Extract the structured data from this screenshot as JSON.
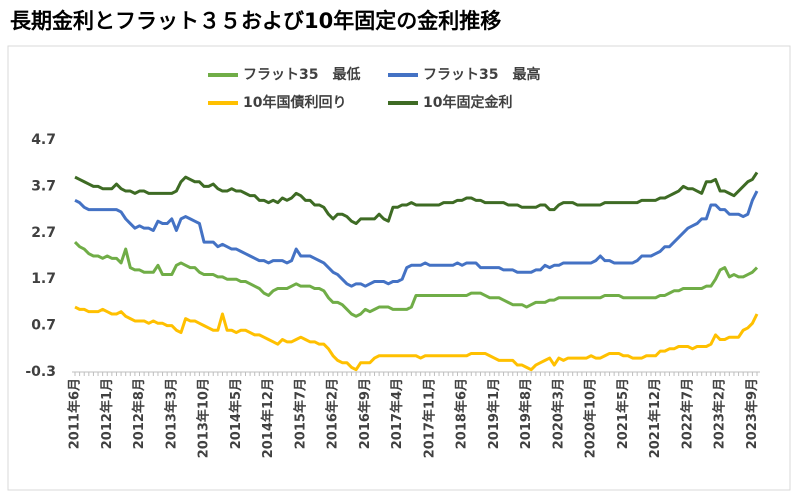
{
  "chart_data": {
    "type": "line",
    "title": "長期金利とフラット３５および10年固定の金利推移",
    "categories": [
      "2011年6月",
      null,
      null,
      null,
      null,
      null,
      null,
      "2012年1月",
      null,
      null,
      null,
      null,
      null,
      null,
      "2012年8月",
      null,
      null,
      null,
      null,
      null,
      null,
      "2013年3月",
      null,
      null,
      null,
      null,
      null,
      null,
      "2013年10月",
      null,
      null,
      null,
      null,
      null,
      null,
      "2014年5月",
      null,
      null,
      null,
      null,
      null,
      null,
      "2014年12月",
      null,
      null,
      null,
      null,
      null,
      null,
      "2015年7月",
      null,
      null,
      null,
      null,
      null,
      null,
      "2016年2月",
      null,
      null,
      null,
      null,
      null,
      null,
      "2016年9月",
      null,
      null,
      null,
      null,
      null,
      null,
      "2017年4月",
      null,
      null,
      null,
      null,
      null,
      null,
      "2017年11月",
      null,
      null,
      null,
      null,
      null,
      null,
      "2018年6月",
      null,
      null,
      null,
      null,
      null,
      null,
      "2019年1月",
      null,
      null,
      null,
      null,
      null,
      null,
      "2019年8月",
      null,
      null,
      null,
      null,
      null,
      null,
      "2020年3月",
      null,
      null,
      null,
      null,
      null,
      null,
      "2020年10月",
      null,
      null,
      null,
      null,
      null,
      null,
      "2021年5月",
      null,
      null,
      null,
      null,
      null,
      null,
      "2021年12月",
      null,
      null,
      null,
      null,
      null,
      null,
      "2022年7月",
      null,
      null,
      null,
      null,
      null,
      null,
      "2023年2月",
      null,
      null,
      null,
      null,
      null,
      null,
      "2023年9月",
      null
    ],
    "series": [
      {
        "name": "フラット35　最低",
        "color": "#70ad47",
        "values": [
          2.5,
          2.4,
          2.35,
          2.25,
          2.2,
          2.2,
          2.15,
          2.2,
          2.15,
          2.15,
          2.05,
          2.35,
          1.95,
          1.9,
          1.9,
          1.85,
          1.85,
          1.85,
          2.0,
          1.8,
          1.8,
          1.8,
          2.0,
          2.05,
          2.0,
          1.95,
          1.95,
          1.85,
          1.8,
          1.8,
          1.8,
          1.75,
          1.75,
          1.7,
          1.7,
          1.7,
          1.65,
          1.65,
          1.6,
          1.55,
          1.5,
          1.4,
          1.35,
          1.45,
          1.5,
          1.5,
          1.5,
          1.55,
          1.6,
          1.55,
          1.55,
          1.55,
          1.5,
          1.5,
          1.45,
          1.3,
          1.2,
          1.2,
          1.15,
          1.05,
          0.95,
          0.9,
          0.95,
          1.05,
          1.0,
          1.05,
          1.1,
          1.1,
          1.1,
          1.05,
          1.05,
          1.05,
          1.05,
          1.1,
          1.35,
          1.35,
          1.35,
          1.35,
          1.35,
          1.35,
          1.35,
          1.35,
          1.35,
          1.35,
          1.35,
          1.35,
          1.4,
          1.4,
          1.4,
          1.35,
          1.3,
          1.3,
          1.3,
          1.25,
          1.2,
          1.15,
          1.15,
          1.15,
          1.1,
          1.15,
          1.2,
          1.2,
          1.2,
          1.25,
          1.25,
          1.3,
          1.3,
          1.3,
          1.3,
          1.3,
          1.3,
          1.3,
          1.3,
          1.3,
          1.3,
          1.35,
          1.35,
          1.35,
          1.35,
          1.3,
          1.3,
          1.3,
          1.3,
          1.3,
          1.3,
          1.3,
          1.3,
          1.35,
          1.35,
          1.4,
          1.45,
          1.45,
          1.5,
          1.5,
          1.5,
          1.5,
          1.5,
          1.55,
          1.55,
          1.7,
          1.9,
          1.95,
          1.75,
          1.8,
          1.75,
          1.75,
          1.8,
          1.85,
          1.95
        ]
      },
      {
        "name": "フラット35　最高",
        "color": "#4472c4",
        "values": [
          3.4,
          3.35,
          3.25,
          3.2,
          3.2,
          3.2,
          3.2,
          3.2,
          3.2,
          3.2,
          3.15,
          3.0,
          2.9,
          2.8,
          2.85,
          2.8,
          2.8,
          2.75,
          2.95,
          2.9,
          2.9,
          3.0,
          2.75,
          3.0,
          3.05,
          3.0,
          2.95,
          2.9,
          2.5,
          2.5,
          2.5,
          2.4,
          2.45,
          2.4,
          2.35,
          2.35,
          2.3,
          2.25,
          2.2,
          2.15,
          2.1,
          2.1,
          2.05,
          2.1,
          2.1,
          2.1,
          2.05,
          2.1,
          2.35,
          2.2,
          2.2,
          2.2,
          2.15,
          2.1,
          2.05,
          1.95,
          1.85,
          1.8,
          1.7,
          1.6,
          1.55,
          1.6,
          1.6,
          1.55,
          1.6,
          1.65,
          1.65,
          1.65,
          1.6,
          1.65,
          1.65,
          1.7,
          1.95,
          2.0,
          2.0,
          2.0,
          2.05,
          2.0,
          2.0,
          2.0,
          2.0,
          2.0,
          2.0,
          2.05,
          2.0,
          2.05,
          2.05,
          2.05,
          1.95,
          1.95,
          1.95,
          1.95,
          1.95,
          1.9,
          1.9,
          1.9,
          1.85,
          1.85,
          1.85,
          1.85,
          1.9,
          1.9,
          2.0,
          1.95,
          2.0,
          2.0,
          2.05,
          2.05,
          2.05,
          2.05,
          2.05,
          2.05,
          2.05,
          2.1,
          2.2,
          2.1,
          2.1,
          2.05,
          2.05,
          2.05,
          2.05,
          2.05,
          2.1,
          2.2,
          2.2,
          2.2,
          2.25,
          2.3,
          2.4,
          2.4,
          2.5,
          2.6,
          2.7,
          2.8,
          2.85,
          2.9,
          3.0,
          3.0,
          3.3,
          3.3,
          3.2,
          3.2,
          3.1,
          3.1,
          3.1,
          3.05,
          3.1,
          3.4,
          3.6
        ]
      },
      {
        "name": "10年国債利回り",
        "color": "#ffc000",
        "values": [
          1.1,
          1.05,
          1.05,
          1.0,
          1.0,
          1.0,
          1.05,
          1.0,
          0.95,
          0.95,
          1.0,
          0.9,
          0.85,
          0.8,
          0.8,
          0.8,
          0.75,
          0.8,
          0.75,
          0.75,
          0.7,
          0.7,
          0.6,
          0.55,
          0.85,
          0.8,
          0.8,
          0.75,
          0.7,
          0.65,
          0.6,
          0.6,
          0.95,
          0.6,
          0.6,
          0.55,
          0.6,
          0.6,
          0.55,
          0.5,
          0.5,
          0.45,
          0.4,
          0.35,
          0.3,
          0.4,
          0.35,
          0.35,
          0.4,
          0.45,
          0.4,
          0.35,
          0.35,
          0.3,
          0.3,
          0.2,
          0.05,
          -0.05,
          -0.1,
          -0.1,
          -0.2,
          -0.25,
          -0.1,
          -0.1,
          -0.1,
          0.0,
          0.05,
          0.05,
          0.05,
          0.05,
          0.05,
          0.05,
          0.05,
          0.05,
          0.05,
          0.0,
          0.05,
          0.05,
          0.05,
          0.05,
          0.05,
          0.05,
          0.05,
          0.05,
          0.05,
          0.05,
          0.1,
          0.1,
          0.1,
          0.1,
          0.05,
          0.0,
          -0.05,
          -0.05,
          -0.05,
          -0.05,
          -0.15,
          -0.15,
          -0.2,
          -0.25,
          -0.15,
          -0.1,
          -0.05,
          0.0,
          -0.15,
          0.0,
          -0.05,
          0.0,
          0.0,
          0.0,
          0.0,
          0.0,
          0.05,
          0.0,
          0.0,
          0.05,
          0.1,
          0.1,
          0.1,
          0.05,
          0.05,
          0.0,
          0.0,
          0.0,
          0.05,
          0.05,
          0.05,
          0.15,
          0.15,
          0.2,
          0.2,
          0.25,
          0.25,
          0.25,
          0.2,
          0.25,
          0.25,
          0.25,
          0.3,
          0.5,
          0.4,
          0.4,
          0.45,
          0.45,
          0.45,
          0.6,
          0.65,
          0.75,
          0.95
        ]
      },
      {
        "name": "10年固定金利",
        "color": "#3e6b24",
        "values": [
          3.9,
          3.85,
          3.8,
          3.75,
          3.7,
          3.7,
          3.65,
          3.65,
          3.65,
          3.75,
          3.65,
          3.6,
          3.6,
          3.55,
          3.6,
          3.6,
          3.55,
          3.55,
          3.55,
          3.55,
          3.55,
          3.55,
          3.6,
          3.8,
          3.9,
          3.85,
          3.8,
          3.8,
          3.7,
          3.7,
          3.75,
          3.65,
          3.6,
          3.6,
          3.65,
          3.6,
          3.6,
          3.55,
          3.5,
          3.5,
          3.4,
          3.4,
          3.35,
          3.4,
          3.35,
          3.45,
          3.4,
          3.45,
          3.55,
          3.5,
          3.4,
          3.4,
          3.3,
          3.3,
          3.25,
          3.1,
          3.0,
          3.1,
          3.1,
          3.05,
          2.95,
          2.9,
          3.0,
          3.0,
          3.0,
          3.0,
          3.1,
          3.0,
          2.95,
          3.25,
          3.25,
          3.3,
          3.3,
          3.35,
          3.3,
          3.3,
          3.3,
          3.3,
          3.3,
          3.3,
          3.35,
          3.35,
          3.35,
          3.4,
          3.4,
          3.45,
          3.45,
          3.4,
          3.4,
          3.35,
          3.35,
          3.35,
          3.35,
          3.35,
          3.3,
          3.3,
          3.3,
          3.25,
          3.25,
          3.25,
          3.25,
          3.3,
          3.3,
          3.2,
          3.2,
          3.3,
          3.35,
          3.35,
          3.35,
          3.3,
          3.3,
          3.3,
          3.3,
          3.3,
          3.3,
          3.35,
          3.35,
          3.35,
          3.35,
          3.35,
          3.35,
          3.35,
          3.35,
          3.4,
          3.4,
          3.4,
          3.4,
          3.45,
          3.45,
          3.5,
          3.55,
          3.6,
          3.7,
          3.65,
          3.65,
          3.6,
          3.55,
          3.8,
          3.8,
          3.85,
          3.6,
          3.6,
          3.55,
          3.5,
          3.6,
          3.7,
          3.8,
          3.85,
          4.0
        ]
      }
    ],
    "ylim": [
      -0.3,
      4.7
    ],
    "yticks": [
      -0.3,
      0.7,
      1.7,
      2.7,
      3.7,
      4.7
    ],
    "grid": false
  }
}
